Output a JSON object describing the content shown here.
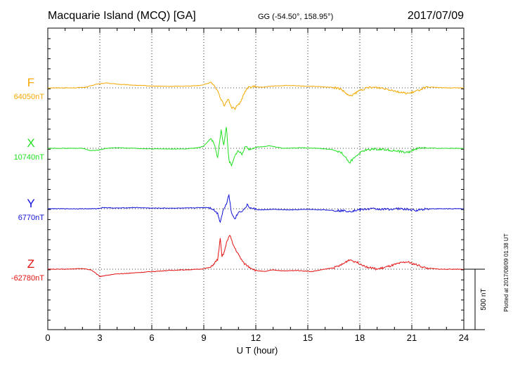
{
  "header": {
    "station": "Macquarie Island (MCQ)  [GA]",
    "coords": "GG (-54.50°, 158.95°)",
    "date": "2017/07/09"
  },
  "footer": {
    "plotted": "Plotted at 2017/08/09 01:38 UT"
  },
  "chart_data": {
    "type": "line",
    "xlabel": "U T (hour)",
    "xlim": [
      0,
      24
    ],
    "xticks": [
      "0",
      "3",
      "6",
      "9",
      "12",
      "15",
      "18",
      "21",
      "24"
    ],
    "scale_bar_label": "500 nT",
    "scale_bar_nT": 500,
    "grid": true,
    "series": [
      {
        "name": "F",
        "baseline_label": "64050nT",
        "baseline_nT": 64050,
        "color": "#f5a800",
        "points": [
          [
            0,
            0
          ],
          [
            1.5,
            0
          ],
          [
            2.2,
            5
          ],
          [
            2.8,
            30
          ],
          [
            3.4,
            40
          ],
          [
            4.2,
            28
          ],
          [
            5,
            22
          ],
          [
            6,
            15
          ],
          [
            7,
            12
          ],
          [
            8,
            15
          ],
          [
            8.8,
            20
          ],
          [
            9.3,
            40
          ],
          [
            9.5,
            38
          ],
          [
            9.8,
            -20
          ],
          [
            10.0,
            -100
          ],
          [
            10.2,
            -150
          ],
          [
            10.4,
            -90
          ],
          [
            10.6,
            -160
          ],
          [
            10.8,
            -170
          ],
          [
            11.1,
            -120
          ],
          [
            11.3,
            -60
          ],
          [
            11.5,
            0
          ],
          [
            11.8,
            10
          ],
          [
            12.4,
            5
          ],
          [
            13.0,
            15
          ],
          [
            13.8,
            20
          ],
          [
            14.6,
            15
          ],
          [
            15.6,
            10
          ],
          [
            16.4,
            5
          ],
          [
            16.9,
            -10
          ],
          [
            17.4,
            -70
          ],
          [
            17.7,
            -50
          ],
          [
            18.0,
            -20
          ],
          [
            18.6,
            5
          ],
          [
            19.2,
            0
          ],
          [
            19.8,
            -15
          ],
          [
            20.4,
            -40
          ],
          [
            20.9,
            -45
          ],
          [
            21.3,
            -25
          ],
          [
            21.7,
            0
          ],
          [
            22.2,
            5
          ],
          [
            23.0,
            0
          ],
          [
            24,
            0
          ]
        ]
      },
      {
        "name": "X",
        "baseline_label": "10740nT",
        "baseline_nT": 10740,
        "color": "#1fe01f",
        "points": [
          [
            0,
            0
          ],
          [
            1.0,
            0
          ],
          [
            2.0,
            0
          ],
          [
            2.5,
            -20
          ],
          [
            2.9,
            -15
          ],
          [
            3.4,
            0
          ],
          [
            4.0,
            5
          ],
          [
            5.0,
            0
          ],
          [
            6.0,
            -5
          ],
          [
            7.0,
            -5
          ],
          [
            8.0,
            -5
          ],
          [
            8.7,
            5
          ],
          [
            9.0,
            20
          ],
          [
            9.4,
            80
          ],
          [
            9.6,
            40
          ],
          [
            9.8,
            -80
          ],
          [
            10.0,
            160
          ],
          [
            10.15,
            20
          ],
          [
            10.3,
            180
          ],
          [
            10.45,
            -100
          ],
          [
            10.6,
            -140
          ],
          [
            10.8,
            -60
          ],
          [
            11.0,
            -20
          ],
          [
            11.2,
            -50
          ],
          [
            11.4,
            20
          ],
          [
            11.6,
            -10
          ],
          [
            12.0,
            10
          ],
          [
            12.8,
            20
          ],
          [
            13.6,
            0
          ],
          [
            14.6,
            5
          ],
          [
            15.6,
            0
          ],
          [
            16.4,
            -10
          ],
          [
            17.0,
            -40
          ],
          [
            17.4,
            -120
          ],
          [
            17.8,
            -60
          ],
          [
            18.2,
            -20
          ],
          [
            18.8,
            -5
          ],
          [
            19.5,
            -10
          ],
          [
            20.2,
            -25
          ],
          [
            20.8,
            -35
          ],
          [
            21.2,
            -5
          ],
          [
            21.6,
            5
          ],
          [
            22.4,
            0
          ],
          [
            24,
            0
          ]
        ]
      },
      {
        "name": "Y",
        "baseline_label": "6770nT",
        "baseline_nT": 6770,
        "color": "#1010d8",
        "points": [
          [
            0,
            0
          ],
          [
            1.5,
            0
          ],
          [
            2.8,
            0
          ],
          [
            3.2,
            10
          ],
          [
            4.0,
            5
          ],
          [
            5.0,
            10
          ],
          [
            6.0,
            5
          ],
          [
            7.0,
            5
          ],
          [
            8.0,
            5
          ],
          [
            8.9,
            10
          ],
          [
            9.3,
            10
          ],
          [
            9.5,
            0
          ],
          [
            9.8,
            -40
          ],
          [
            9.95,
            -110
          ],
          [
            10.1,
            -20
          ],
          [
            10.3,
            40
          ],
          [
            10.45,
            120
          ],
          [
            10.6,
            -40
          ],
          [
            10.8,
            -80
          ],
          [
            11.0,
            -30
          ],
          [
            11.3,
            -10
          ],
          [
            11.5,
            30
          ],
          [
            11.7,
            5
          ],
          [
            12.2,
            -10
          ],
          [
            13.0,
            -5
          ],
          [
            14.0,
            -10
          ],
          [
            15.0,
            -5
          ],
          [
            16.0,
            -10
          ],
          [
            16.8,
            -15
          ],
          [
            17.5,
            -20
          ],
          [
            17.9,
            -10
          ],
          [
            18.6,
            0
          ],
          [
            19.4,
            -5
          ],
          [
            20.2,
            0
          ],
          [
            20.8,
            -5
          ],
          [
            21.2,
            -15
          ],
          [
            21.8,
            0
          ],
          [
            22.6,
            0
          ],
          [
            24,
            0
          ]
        ]
      },
      {
        "name": "Z",
        "baseline_label": "-62780nT",
        "baseline_nT": -62780,
        "color": "#e41010",
        "points": [
          [
            0,
            0
          ],
          [
            1.0,
            0
          ],
          [
            2.0,
            5
          ],
          [
            2.5,
            -5
          ],
          [
            3.0,
            -60
          ],
          [
            3.4,
            -50
          ],
          [
            4.0,
            -40
          ],
          [
            5.0,
            -30
          ],
          [
            6.0,
            -20
          ],
          [
            7.0,
            -10
          ],
          [
            8.0,
            -5
          ],
          [
            8.8,
            0
          ],
          [
            9.4,
            15
          ],
          [
            9.8,
            80
          ],
          [
            9.95,
            250
          ],
          [
            10.05,
            100
          ],
          [
            10.2,
            150
          ],
          [
            10.35,
            240
          ],
          [
            10.5,
            280
          ],
          [
            10.7,
            200
          ],
          [
            11.0,
            120
          ],
          [
            11.3,
            50
          ],
          [
            11.6,
            20
          ],
          [
            12.0,
            -10
          ],
          [
            12.5,
            -20
          ],
          [
            13.0,
            -5
          ],
          [
            13.6,
            -15
          ],
          [
            14.4,
            -10
          ],
          [
            15.2,
            -20
          ],
          [
            16.0,
            0
          ],
          [
            16.6,
            15
          ],
          [
            17.0,
            40
          ],
          [
            17.4,
            80
          ],
          [
            17.8,
            60
          ],
          [
            18.4,
            20
          ],
          [
            19.0,
            0
          ],
          [
            19.6,
            20
          ],
          [
            20.2,
            45
          ],
          [
            20.7,
            60
          ],
          [
            21.2,
            40
          ],
          [
            21.8,
            10
          ],
          [
            22.6,
            0
          ],
          [
            24,
            0
          ]
        ]
      }
    ]
  }
}
